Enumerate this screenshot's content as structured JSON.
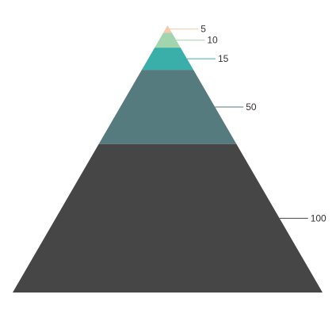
{
  "chart_data": {
    "type": "pyramid",
    "title": "",
    "values": [
      5,
      10,
      15,
      50,
      100
    ],
    "labels": [
      "5",
      "10",
      "15",
      "50",
      "100"
    ],
    "colors": [
      "#f7c9a9",
      "#a2d4ad",
      "#3aafa9",
      "#557b7e",
      "#464646"
    ],
    "legend": "none"
  }
}
